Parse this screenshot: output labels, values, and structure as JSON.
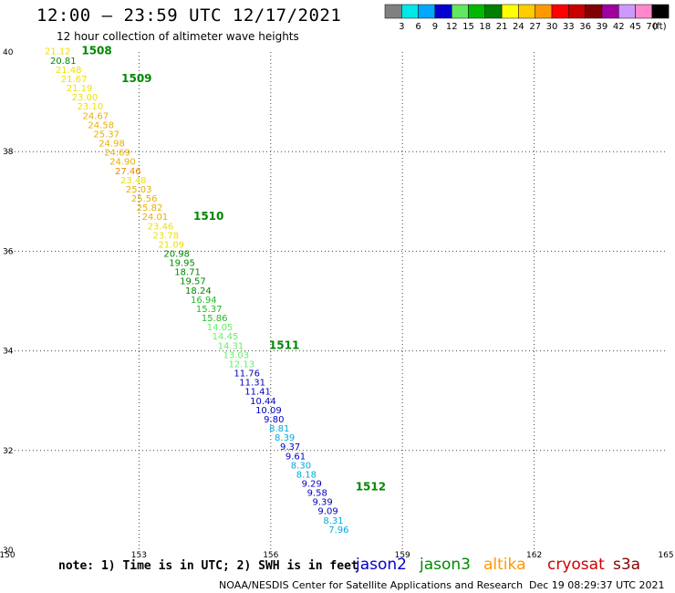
{
  "header": {
    "title": "12:00 – 23:59 UTC 12/17/2021",
    "subtitle": "12 hour collection of altimeter wave heights"
  },
  "legend_bar": {
    "ticks": [
      "3",
      "6",
      "9",
      "12",
      "15",
      "18",
      "21",
      "24",
      "27",
      "30",
      "33",
      "36",
      "39",
      "42",
      "45",
      "70",
      "(ft)"
    ],
    "colors": [
      "#808080",
      "#00e8e8",
      "#00a8ff",
      "#0000d0",
      "#60e860",
      "#00b800",
      "#008000",
      "#ffff00",
      "#ffcc00",
      "#ff9900",
      "#ff0000",
      "#c80000",
      "#800000",
      "#a000a0",
      "#cc99ff",
      "#ff88cc",
      "#000000"
    ]
  },
  "footer": {
    "note": "note: 1) Time is in UTC; 2) SWH is in feet",
    "satellites": [
      {
        "name": "jason2",
        "color": "#0000cc"
      },
      {
        "name": "jason3",
        "color": "#008800"
      },
      {
        "name": "altika",
        "color": "#ff9900"
      },
      {
        "name": "cryosat",
        "color": "#cc0000"
      },
      {
        "name": "s3a",
        "color": "#880000"
      }
    ],
    "credit": "NOAA/NESDIS Center for Satellite Applications and Research",
    "timestamp": "Dec 19 08:29:37 UTC 2021"
  },
  "chart_data": {
    "type": "scatter",
    "x_ticks": [
      "150",
      "153",
      "156",
      "159",
      "162",
      "165"
    ],
    "y_ticks": [
      "30",
      "32",
      "34",
      "36",
      "38",
      "40"
    ],
    "xlim": [
      150,
      165
    ],
    "ylim": [
      30,
      40
    ],
    "grid": true,
    "values": [
      "21.12",
      "20.81",
      "21.48",
      "21.67",
      "21.19",
      "23.00",
      "23.10",
      "24.67",
      "24.58",
      "25.37",
      "24.98",
      "24.69",
      "24.90",
      "27.46",
      "23.48",
      "25.03",
      "25.56",
      "25.82",
      "24.01",
      "23.46",
      "23.78",
      "21.09",
      "20.98",
      "19.95",
      "18.71",
      "19.57",
      "18.24",
      "16.94",
      "15.37",
      "15.86",
      "14.05",
      "14.45",
      "14.31",
      "13.03",
      "12.13",
      "11.76",
      "11.31",
      "11.41",
      "10.44",
      "10.09",
      "9.80",
      "8.81",
      "8.39",
      "9.37",
      "9.61",
      "8.30",
      "8.18",
      "9.29",
      "9.58",
      "9.39",
      "9.09",
      "8.31",
      "7.96"
    ],
    "time_labels": [
      "1508",
      "1509",
      "1510",
      "1511",
      "1512"
    ]
  }
}
